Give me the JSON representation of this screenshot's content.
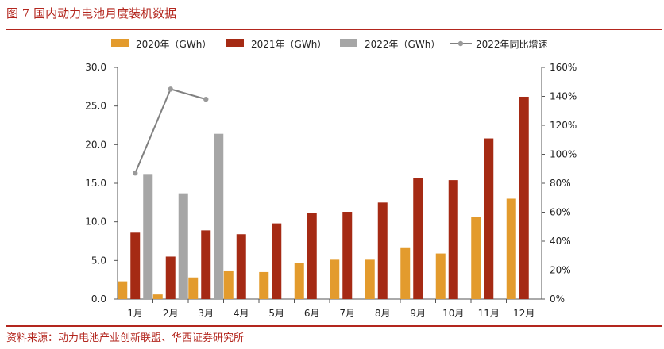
{
  "page": {
    "title": "图 7 国内动力电池月度装机数据",
    "source": "资料来源：动力电池产业创新联盟、华西证券研究所"
  },
  "chart_data": {
    "type": "bar",
    "categories": [
      "1月",
      "2月",
      "3月",
      "4月",
      "5月",
      "6月",
      "7月",
      "8月",
      "9月",
      "10月",
      "11月",
      "12月"
    ],
    "series": [
      {
        "name": "2020年（GWh）",
        "kind": "bar",
        "axis": "left",
        "color": "#e39b2d",
        "values": [
          2.3,
          0.6,
          2.8,
          3.6,
          3.5,
          4.7,
          5.1,
          5.1,
          6.6,
          5.9,
          10.6,
          13.0
        ]
      },
      {
        "name": "2021年（GWh）",
        "kind": "bar",
        "axis": "left",
        "color": "#a52a14",
        "values": [
          8.6,
          5.5,
          8.9,
          8.4,
          9.8,
          11.1,
          11.3,
          12.5,
          15.7,
          15.4,
          20.8,
          26.2
        ]
      },
      {
        "name": "2022年（GWh）",
        "kind": "bar",
        "axis": "left",
        "color": "#a6a6a6",
        "values": [
          16.2,
          13.7,
          21.4,
          null,
          null,
          null,
          null,
          null,
          null,
          null,
          null,
          null
        ]
      },
      {
        "name": "2022年同比增速",
        "kind": "line",
        "axis": "right",
        "color": "#808080",
        "values": [
          0.87,
          1.45,
          1.38,
          null,
          null,
          null,
          null,
          null,
          null,
          null,
          null,
          null
        ]
      }
    ],
    "y_left": {
      "min": 0,
      "max": 30,
      "ticks": [
        "0.0",
        "5.0",
        "10.0",
        "15.0",
        "20.0",
        "25.0",
        "30.0"
      ]
    },
    "y_right": {
      "min": 0,
      "max": 1.6,
      "ticks": [
        "0%",
        "20%",
        "40%",
        "60%",
        "80%",
        "100%",
        "120%",
        "140%",
        "160%"
      ]
    },
    "legend_position": "top",
    "grid": false
  }
}
